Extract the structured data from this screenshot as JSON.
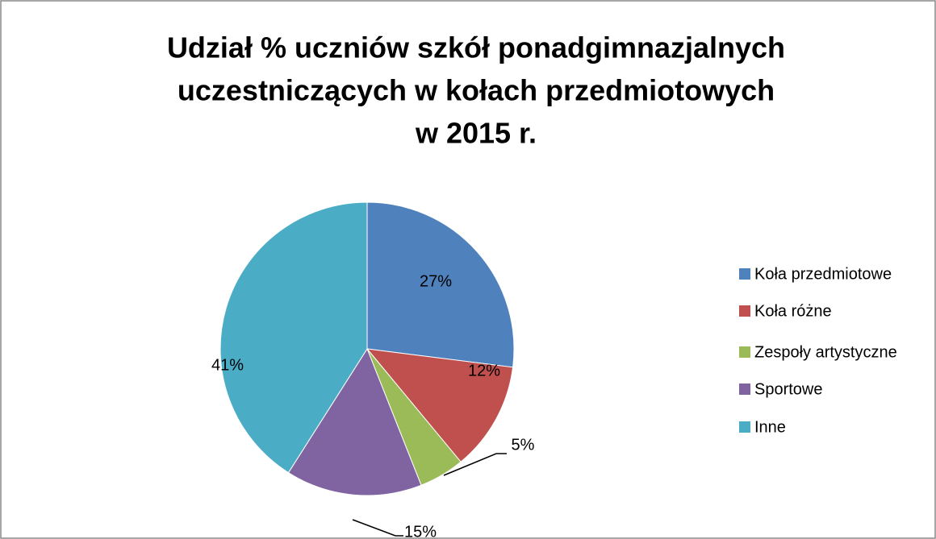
{
  "chart_data": {
    "type": "pie",
    "title": [
      "Udział % uczniów szkół ponadgimnazjalnych",
      "uczestniczących w kołach przedmiotowych",
      "w 2015 r."
    ],
    "categories": [
      "Koła przedmiotowe",
      "Koła różne",
      "Zespoły artystyczne",
      "Sportowe",
      "Inne"
    ],
    "values": [
      27,
      12,
      5,
      15,
      41
    ],
    "value_labels": [
      "27%",
      "12%",
      "5%",
      "15%",
      "41%"
    ],
    "colors": [
      "#4f81bd",
      "#c0504d",
      "#9bbb59",
      "#8064a2",
      "#4bacc6"
    ],
    "legend": "right"
  }
}
